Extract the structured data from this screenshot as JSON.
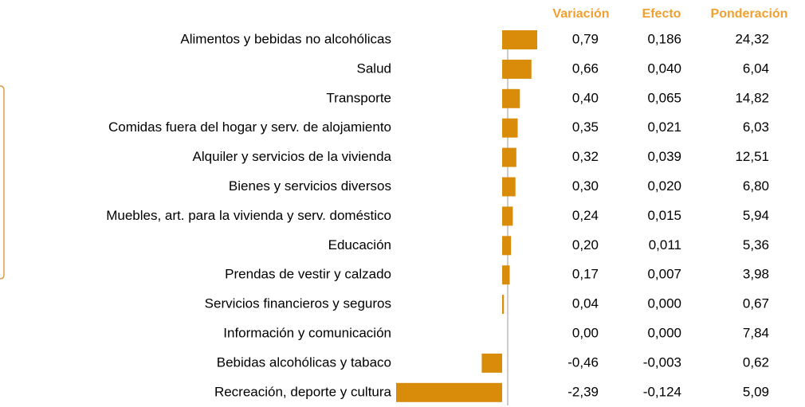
{
  "chart_data": {
    "type": "bar",
    "orientation": "horizontal",
    "color": "#d98c0a",
    "header_color": "#f0a030",
    "categories": [
      "Alimentos y bebidas no alcohólicas",
      "Salud",
      "Transporte",
      "Comidas fuera del hogar y serv. de alojamiento",
      "Alquiler y servicios de la vivienda",
      "Bienes y servicios diversos",
      "Muebles, art. para la vivienda y serv. doméstico",
      "Educación",
      "Prendas de vestir y calzado",
      "Servicios financieros y seguros",
      "Información y comunicación",
      "Bebidas alcohólicas y tabaco",
      "Recreación, deporte y cultura"
    ],
    "values_header": "Variación",
    "values": [
      0.79,
      0.66,
      0.4,
      0.35,
      0.32,
      0.3,
      0.24,
      0.2,
      0.17,
      0.04,
      0.0,
      -0.46,
      -2.39
    ],
    "value_labels": [
      "0,79",
      "0,66",
      "0,40",
      "0,35",
      "0,32",
      "0,30",
      "0,24",
      "0,20",
      "0,17",
      "0,04",
      "0,00",
      "-0,46",
      "-2,39"
    ],
    "columns": [
      {
        "name": "Efecto",
        "values": [
          "0,186",
          "0,040",
          "0,065",
          "0,021",
          "0,039",
          "0,020",
          "0,015",
          "0,011",
          "0,007",
          "0,000",
          "0,000",
          "-0,003",
          "-0,124"
        ]
      },
      {
        "name": "Ponderación",
        "values": [
          "24,32",
          "6,04",
          "14,82",
          "6,03",
          "12,51",
          "6,80",
          "5,94",
          "5,36",
          "3,98",
          "0,67",
          "7,84",
          "0,62",
          "5,09"
        ]
      }
    ]
  }
}
